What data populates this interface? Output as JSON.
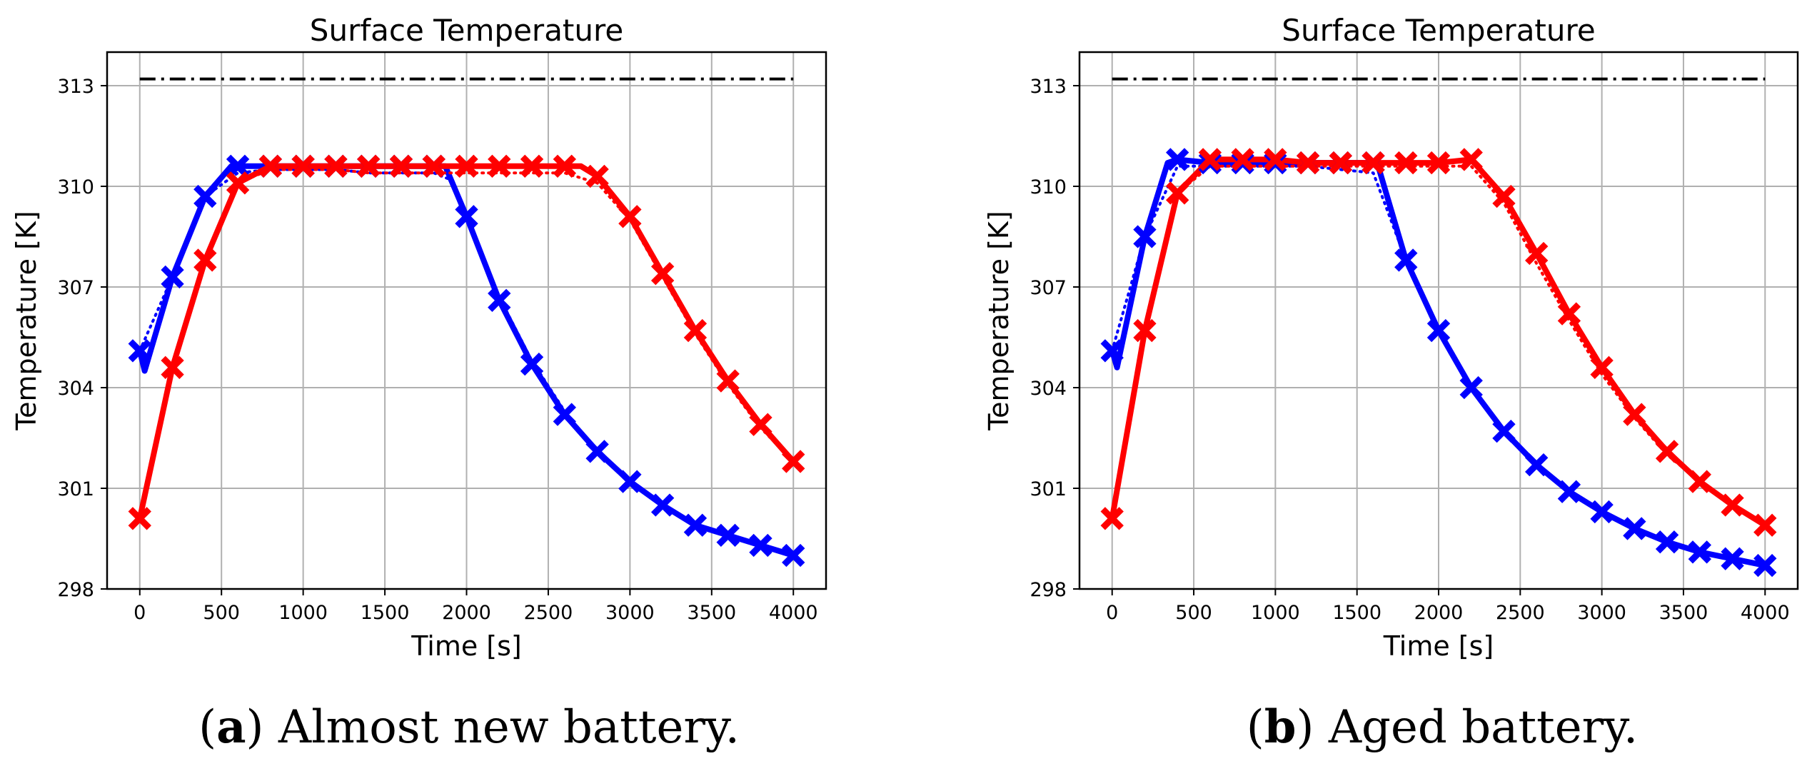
{
  "figure": {
    "caption_a": {
      "prefix": "(",
      "letter": "a",
      "text": ") Almost new battery."
    },
    "caption_b": {
      "prefix": "(",
      "letter": "b",
      "text": ") Aged battery."
    }
  },
  "chart_data": [
    {
      "type": "line",
      "title": "Surface Temperature",
      "xlabel": "Time [s]",
      "ylabel": "Temperature [K]",
      "xlim": [
        -200,
        4200
      ],
      "ylim": [
        298,
        314
      ],
      "xticks": [
        0,
        500,
        1000,
        1500,
        2000,
        2500,
        3000,
        3500,
        4000
      ],
      "yticks": [
        298,
        301,
        304,
        307,
        310,
        313
      ],
      "grid": true,
      "series": [
        {
          "name": "limit",
          "style": "dashdot",
          "color": "#000000",
          "x": [
            0,
            4000
          ],
          "y": [
            313.2,
            313.2
          ]
        },
        {
          "name": "blue",
          "style": "solid",
          "color": "#0000ff",
          "marker": "X",
          "x": [
            0,
            30,
            200,
            400,
            560,
            600,
            800,
            1000,
            1200,
            1400,
            1600,
            1800,
            1870,
            2000,
            2200,
            2400,
            2600,
            2800,
            3000,
            3200,
            3400,
            3600,
            3800,
            4000
          ],
          "y": [
            305.1,
            304.5,
            307.3,
            309.7,
            310.6,
            310.6,
            310.6,
            310.6,
            310.6,
            310.6,
            310.6,
            310.6,
            310.6,
            309.1,
            306.6,
            304.7,
            303.2,
            302.1,
            301.2,
            300.5,
            299.9,
            299.6,
            299.3,
            299.0
          ]
        },
        {
          "name": "blue-dotted",
          "style": "dotted",
          "color": "#0000ff",
          "x": [
            0,
            200,
            400,
            600,
            800,
            1000,
            1200,
            1400,
            1600,
            1800,
            1900,
            2000,
            2200,
            2400,
            2600,
            2800,
            3000,
            3200,
            3400,
            3600,
            3800,
            4000
          ],
          "y": [
            305.1,
            307.3,
            309.7,
            310.4,
            310.5,
            310.5,
            310.5,
            310.4,
            310.4,
            310.4,
            310.2,
            309.0,
            306.7,
            304.8,
            303.3,
            302.1,
            301.2,
            300.5,
            299.9,
            299.6,
            299.3,
            299.0
          ]
        },
        {
          "name": "red",
          "style": "solid",
          "color": "#ff0000",
          "marker": "X",
          "x": [
            0,
            200,
            400,
            600,
            800,
            1000,
            1200,
            1400,
            1600,
            1800,
            2000,
            2200,
            2400,
            2600,
            2700,
            2800,
            3000,
            3200,
            3400,
            3600,
            3800,
            4000
          ],
          "y": [
            300.1,
            304.6,
            307.8,
            310.1,
            310.6,
            310.6,
            310.6,
            310.6,
            310.6,
            310.6,
            310.6,
            310.6,
            310.6,
            310.6,
            310.6,
            310.3,
            309.1,
            307.4,
            305.7,
            304.2,
            302.9,
            301.8
          ]
        },
        {
          "name": "red-dotted",
          "style": "dotted",
          "color": "#ff0000",
          "x": [
            0,
            200,
            400,
            600,
            800,
            1000,
            1200,
            1400,
            1600,
            1800,
            2000,
            2200,
            2400,
            2600,
            2800,
            3000,
            3200,
            3400,
            3600,
            3800,
            4000
          ],
          "y": [
            300.1,
            304.6,
            307.8,
            310.1,
            310.5,
            310.5,
            310.5,
            310.4,
            310.4,
            310.4,
            310.4,
            310.4,
            310.4,
            310.4,
            310.1,
            309.0,
            307.3,
            305.6,
            304.1,
            302.8,
            301.8
          ]
        }
      ]
    },
    {
      "type": "line",
      "title": "Surface Temperature",
      "xlabel": "Time [s]",
      "ylabel": "Temperature [K]",
      "xlim": [
        -200,
        4200
      ],
      "ylim": [
        298,
        314
      ],
      "xticks": [
        0,
        500,
        1000,
        1500,
        2000,
        2500,
        3000,
        3500,
        4000
      ],
      "yticks": [
        298,
        301,
        304,
        307,
        310,
        313
      ],
      "grid": true,
      "series": [
        {
          "name": "limit",
          "style": "dashdot",
          "color": "#000000",
          "x": [
            0,
            4000
          ],
          "y": [
            313.2,
            313.2
          ]
        },
        {
          "name": "blue",
          "style": "solid",
          "color": "#0000ff",
          "marker": "X",
          "x": [
            0,
            30,
            200,
            340,
            400,
            600,
            800,
            1000,
            1200,
            1400,
            1600,
            1630,
            1800,
            2000,
            2200,
            2400,
            2600,
            2800,
            3000,
            3200,
            3400,
            3600,
            3800,
            4000
          ],
          "y": [
            305.1,
            304.6,
            308.5,
            310.7,
            310.8,
            310.7,
            310.7,
            310.7,
            310.7,
            310.7,
            310.7,
            310.6,
            307.8,
            305.7,
            304.0,
            302.7,
            301.7,
            300.9,
            300.3,
            299.8,
            299.4,
            299.1,
            298.9,
            298.7
          ]
        },
        {
          "name": "blue-dotted",
          "style": "dotted",
          "color": "#0000ff",
          "x": [
            0,
            200,
            400,
            600,
            800,
            1000,
            1200,
            1400,
            1600,
            1800,
            2000,
            2200,
            2400,
            2600,
            2800,
            3000,
            3200,
            3400,
            3600,
            3800,
            4000
          ],
          "y": [
            305.1,
            308.5,
            310.6,
            310.6,
            310.6,
            310.6,
            310.6,
            310.5,
            310.4,
            307.8,
            305.7,
            304.0,
            302.7,
            301.7,
            300.9,
            300.3,
            299.8,
            299.4,
            299.1,
            298.9,
            298.7
          ]
        },
        {
          "name": "red",
          "style": "solid",
          "color": "#ff0000",
          "marker": "X",
          "x": [
            0,
            200,
            400,
            600,
            800,
            1000,
            1200,
            1400,
            1600,
            1800,
            2000,
            2200,
            2400,
            2600,
            2800,
            3000,
            3200,
            3400,
            3600,
            3800,
            4000
          ],
          "y": [
            300.1,
            305.7,
            309.8,
            310.8,
            310.8,
            310.8,
            310.7,
            310.7,
            310.7,
            310.7,
            310.7,
            310.8,
            309.7,
            308.0,
            306.2,
            304.6,
            303.2,
            302.1,
            301.2,
            300.5,
            299.9
          ]
        },
        {
          "name": "red-dotted",
          "style": "dotted",
          "color": "#ff0000",
          "x": [
            0,
            200,
            400,
            600,
            800,
            1000,
            1200,
            1400,
            1600,
            1800,
            2000,
            2200,
            2400,
            2600,
            2800,
            3000,
            3200,
            3400,
            3600,
            3800,
            4000
          ],
          "y": [
            300.1,
            305.7,
            309.8,
            310.6,
            310.6,
            310.6,
            310.6,
            310.6,
            310.6,
            310.6,
            310.6,
            310.6,
            309.5,
            307.7,
            306.0,
            304.4,
            303.1,
            302.0,
            301.2,
            300.5,
            299.9
          ]
        }
      ]
    }
  ]
}
